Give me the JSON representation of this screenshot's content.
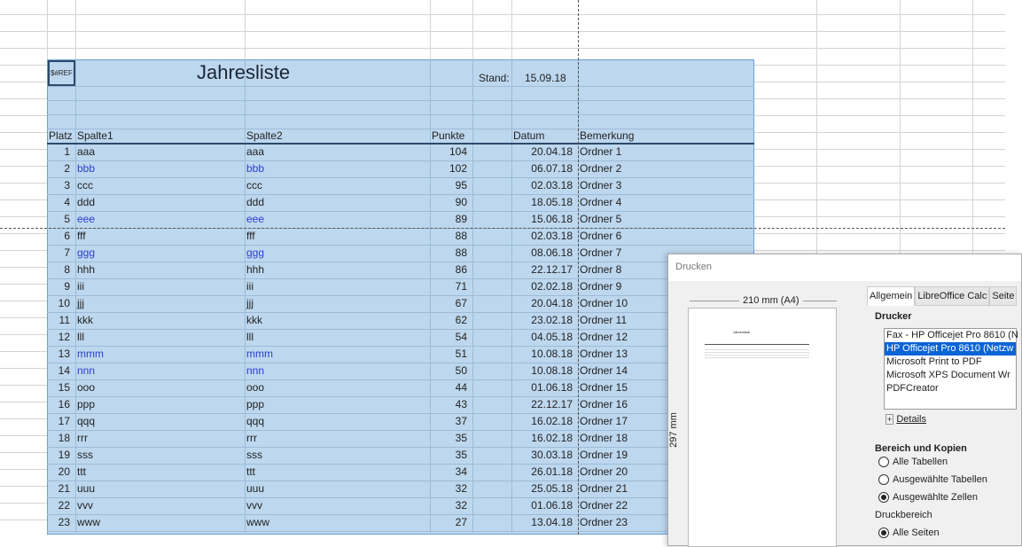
{
  "sheet": {
    "ref_error": "$#REF",
    "title": "Jahresliste",
    "stand_label": "Stand:",
    "stand_value": "15.09.18",
    "headers": [
      "Platz",
      "Spalte1",
      "Spalte2",
      "Punkte",
      "Datum",
      "Bemerkung"
    ],
    "rows": [
      [
        "1",
        "aaa",
        "aaa",
        "104",
        "20.04.18",
        "Ordner 1",
        false
      ],
      [
        "2",
        "bbb",
        "bbb",
        "102",
        "06.07.18",
        "Ordner 2",
        true
      ],
      [
        "3",
        "ccc",
        "ccc",
        "95",
        "02.03.18",
        "Ordner 3",
        false
      ],
      [
        "4",
        "ddd",
        "ddd",
        "90",
        "18.05.18",
        "Ordner 4",
        false
      ],
      [
        "5",
        "eee",
        "eee",
        "89",
        "15.06.18",
        "Ordner 5",
        true
      ],
      [
        "6",
        "fff",
        "fff",
        "88",
        "02.03.18",
        "Ordner 6",
        false
      ],
      [
        "7",
        "ggg",
        "ggg",
        "88",
        "08.06.18",
        "Ordner 7",
        true
      ],
      [
        "8",
        "hhh",
        "hhh",
        "86",
        "22.12.17",
        "Ordner 8",
        false
      ],
      [
        "9",
        "iii",
        "iii",
        "71",
        "02.02.18",
        "Ordner 9",
        false
      ],
      [
        "10",
        "jjj",
        "jjj",
        "67",
        "20.04.18",
        "Ordner 10",
        false
      ],
      [
        "11",
        "kkk",
        "kkk",
        "62",
        "23.02.18",
        "Ordner 11",
        false
      ],
      [
        "12",
        "lll",
        "lll",
        "54",
        "04.05.18",
        "Ordner 12",
        false
      ],
      [
        "13",
        "mmm",
        "mmm",
        "51",
        "10.08.18",
        "Ordner 13",
        true
      ],
      [
        "14",
        "nnn",
        "nnn",
        "50",
        "10.08.18",
        "Ordner 14",
        true
      ],
      [
        "15",
        "ooo",
        "ooo",
        "44",
        "01.06.18",
        "Ordner 15",
        false
      ],
      [
        "16",
        "ppp",
        "ppp",
        "43",
        "22.12.17",
        "Ordner 16",
        false
      ],
      [
        "17",
        "qqq",
        "qqq",
        "37",
        "16.02.18",
        "Ordner 17",
        false
      ],
      [
        "18",
        "rrr",
        "rrr",
        "35",
        "16.02.18",
        "Ordner 18",
        false
      ],
      [
        "19",
        "sss",
        "sss",
        "35",
        "30.03.18",
        "Ordner 19",
        false
      ],
      [
        "20",
        "ttt",
        "ttt",
        "34",
        "26.01.18",
        "Ordner 20",
        false
      ],
      [
        "21",
        "uuu",
        "uuu",
        "32",
        "25.05.18",
        "Ordner 21",
        false
      ],
      [
        "22",
        "vvv",
        "vvv",
        "32",
        "01.06.18",
        "Ordner 22",
        false
      ],
      [
        "23",
        "www",
        "www",
        "27",
        "13.04.18",
        "Ordner 23",
        false
      ]
    ],
    "colors": {
      "selection": "#bdd7ee",
      "highlight_text": "#2a3fcf"
    }
  },
  "dialog": {
    "title": "Drucken",
    "width_label": "210 mm (A4)",
    "height_label": "297 mm",
    "tabs": [
      "Allgemein",
      "LibreOffice Calc",
      "Seite"
    ],
    "printer_label": "Drucker",
    "printers": [
      "Fax - HP Officejet Pro 8610 (N",
      "HP Officejet Pro 8610 (Netzw",
      "Microsoft Print to PDF",
      "Microsoft XPS Document Wr",
      "PDFCreator"
    ],
    "selected_printer": 1,
    "details": "Details",
    "range_label": "Bereich und Kopien",
    "range_options": [
      "Alle Tabellen",
      "Ausgewählte Tabellen",
      "Ausgewählte Zellen"
    ],
    "selected_range": 2,
    "print_range_label": "Druckbereich",
    "print_range_option": "Alle Seiten"
  }
}
